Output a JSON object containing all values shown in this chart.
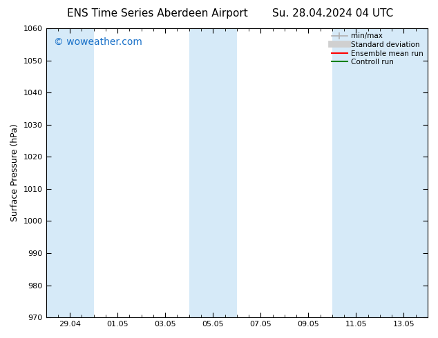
{
  "title_left": "ENS Time Series Aberdeen Airport",
  "title_right": "Su. 28.04.2024 04 UTC",
  "ylabel": "Surface Pressure (hPa)",
  "ylim": [
    970,
    1060
  ],
  "yticks": [
    970,
    980,
    990,
    1000,
    1010,
    1020,
    1030,
    1040,
    1050,
    1060
  ],
  "x_min": 0,
  "x_max": 16,
  "xtick_labels": [
    "29.04",
    "01.05",
    "03.05",
    "05.05",
    "07.05",
    "09.05",
    "11.05",
    "13.05"
  ],
  "xtick_positions": [
    1,
    3,
    5,
    7,
    9,
    11,
    13,
    15
  ],
  "watermark": "© woweather.com",
  "watermark_color": "#1870c8",
  "bg_color": "#ffffff",
  "plot_bg_color": "#ffffff",
  "shaded_color": "#d6eaf8",
  "shaded_bands": [
    {
      "x_start": 0,
      "x_end": 2
    },
    {
      "x_start": 6,
      "x_end": 8
    },
    {
      "x_start": 12,
      "x_end": 16
    }
  ],
  "legend_items": [
    {
      "label": "min/max",
      "color": "#b0b0b0",
      "lw": 1.2,
      "cap": true
    },
    {
      "label": "Standard deviation",
      "color": "#d0d0d0",
      "lw": 7,
      "cap": false
    },
    {
      "label": "Ensemble mean run",
      "color": "#ff0000",
      "lw": 1.5,
      "cap": false
    },
    {
      "label": "Controll run",
      "color": "#008000",
      "lw": 1.5,
      "cap": false
    }
  ],
  "title_fontsize": 11,
  "axis_label_fontsize": 9,
  "tick_fontsize": 8,
  "watermark_fontsize": 10,
  "legend_fontsize": 7.5
}
